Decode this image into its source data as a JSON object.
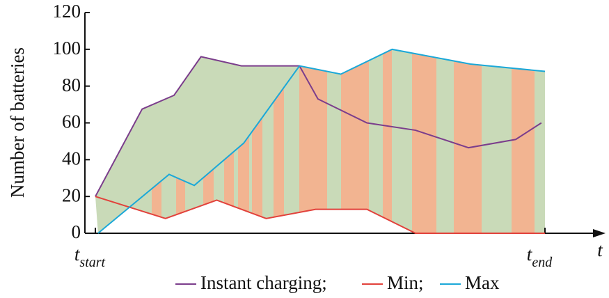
{
  "chart_data": {
    "type": "line",
    "ylabel": "Number of batteries",
    "xlabel": "t",
    "xlim": [
      0,
      100
    ],
    "xticks": [
      {
        "value": 0,
        "label": "t",
        "sub": "start"
      },
      {
        "value": 100,
        "label": "t",
        "sub": "end"
      }
    ],
    "ylim": [
      0,
      120
    ],
    "yticks": [
      0,
      20,
      40,
      60,
      80,
      100,
      120
    ],
    "fill_color": "#c9dab8",
    "stripe_color": "#f2b491",
    "series": [
      {
        "name": "Instant charging;",
        "color": "#7b3d8c",
        "x": [
          0,
          10.4,
          17.5,
          23.5,
          32.5,
          45.4,
          49.5,
          60.4,
          71.2,
          83,
          93.5,
          99.2
        ],
        "values": [
          20,
          67.5,
          75,
          96,
          91,
          91,
          73,
          60,
          56,
          46.5,
          51,
          60
        ]
      },
      {
        "name": "Min;",
        "color": "#e2413b",
        "x": [
          0,
          15.6,
          27,
          38,
          49,
          60.4,
          71.2,
          100
        ],
        "values": [
          20,
          8,
          18,
          8,
          13,
          13,
          0,
          0
        ]
      },
      {
        "name": "Max",
        "color": "#1ba8d8",
        "x": [
          0.6,
          16.4,
          22,
          33,
          45.4,
          54.6,
          66,
          83.4,
          100
        ],
        "values": [
          0,
          32,
          26,
          49,
          91,
          86.5,
          100,
          92,
          88
        ]
      }
    ]
  }
}
